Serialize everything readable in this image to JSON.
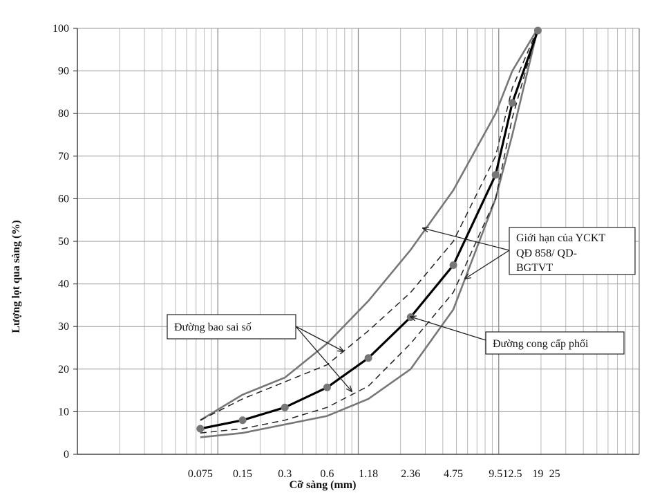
{
  "chart_data": {
    "type": "line",
    "title": "",
    "xlabel": "Cỡ sàng (mm)",
    "ylabel": "Lượng lọt qua sàng (%)",
    "x_scale": "log",
    "xlim": [
      0.01,
      100
    ],
    "ylim": [
      0,
      100
    ],
    "yticks": [
      0,
      10,
      20,
      30,
      40,
      50,
      60,
      70,
      80,
      90,
      100
    ],
    "xtick_labels": [
      "0.075",
      "0.15",
      "0.3",
      "0.6",
      "1.18",
      "2.36",
      "4.75",
      "9.5",
      "12.5",
      "19",
      "25"
    ],
    "sieves": [
      0.075,
      0.15,
      0.3,
      0.6,
      1.18,
      2.36,
      4.75,
      9.5,
      12.5,
      19
    ],
    "grid": true,
    "series": [
      {
        "name": "Giới hạn của YCKT QĐ 858/ QD-BGTVT",
        "role": "upper-limit",
        "color": "#777777",
        "style": "solid",
        "values": [
          8,
          14,
          18,
          26,
          36,
          48,
          62,
          80,
          90,
          100
        ]
      },
      {
        "name": "Giới hạn của YCKT QĐ 858/ QD-BGTVT",
        "role": "lower-limit",
        "color": "#777777",
        "style": "solid",
        "values": [
          4,
          5,
          7,
          9,
          13,
          20,
          34,
          60,
          75,
          100
        ]
      },
      {
        "name": "Đường bao sai số",
        "role": "upper-tolerance",
        "color": "#222222",
        "style": "dashed",
        "values": [
          8,
          13,
          17,
          21,
          29,
          38,
          50,
          70,
          86,
          100
        ]
      },
      {
        "name": "Đường bao sai số",
        "role": "lower-tolerance",
        "color": "#222222",
        "style": "dashed",
        "values": [
          5,
          6,
          8,
          11,
          16,
          26,
          38,
          60,
          79,
          100
        ]
      },
      {
        "name": "Đường cong cấp phối",
        "role": "gradation",
        "color": "#000000",
        "style": "solid-bold",
        "values": [
          6,
          8,
          11,
          15.7,
          22.6,
          32.2,
          44.4,
          65.6,
          82.5,
          99.5
        ]
      }
    ],
    "annotations": [
      {
        "id": "limit",
        "lines": [
          "Giới hạn của YCKT",
          "QĐ 858/ QD-",
          "BGTVT"
        ]
      },
      {
        "id": "tolerance",
        "lines": [
          "Đường bao sai số"
        ]
      },
      {
        "id": "gradation",
        "lines": [
          "Đường cong cấp phối"
        ]
      }
    ]
  }
}
